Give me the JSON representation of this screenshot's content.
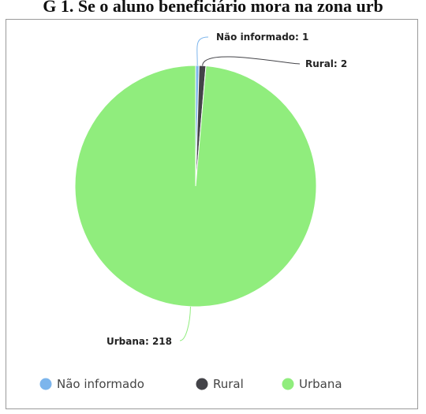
{
  "caption": "G 1.  Se o aluno beneficiário mora na zona urb",
  "chart_data": {
    "type": "pie",
    "title": "",
    "categories": [
      "Não informado",
      "Rural",
      "Urbana"
    ],
    "values": [
      1,
      2,
      218
    ],
    "colors": [
      "#7cb5ec",
      "#434348",
      "#90ed7d"
    ],
    "data_labels": [
      "Não informado: 1",
      "Rural: 2",
      "Urbana: 218"
    ],
    "legend": {
      "position": "bottom",
      "items": [
        "Não informado",
        "Rural",
        "Urbana"
      ]
    }
  }
}
